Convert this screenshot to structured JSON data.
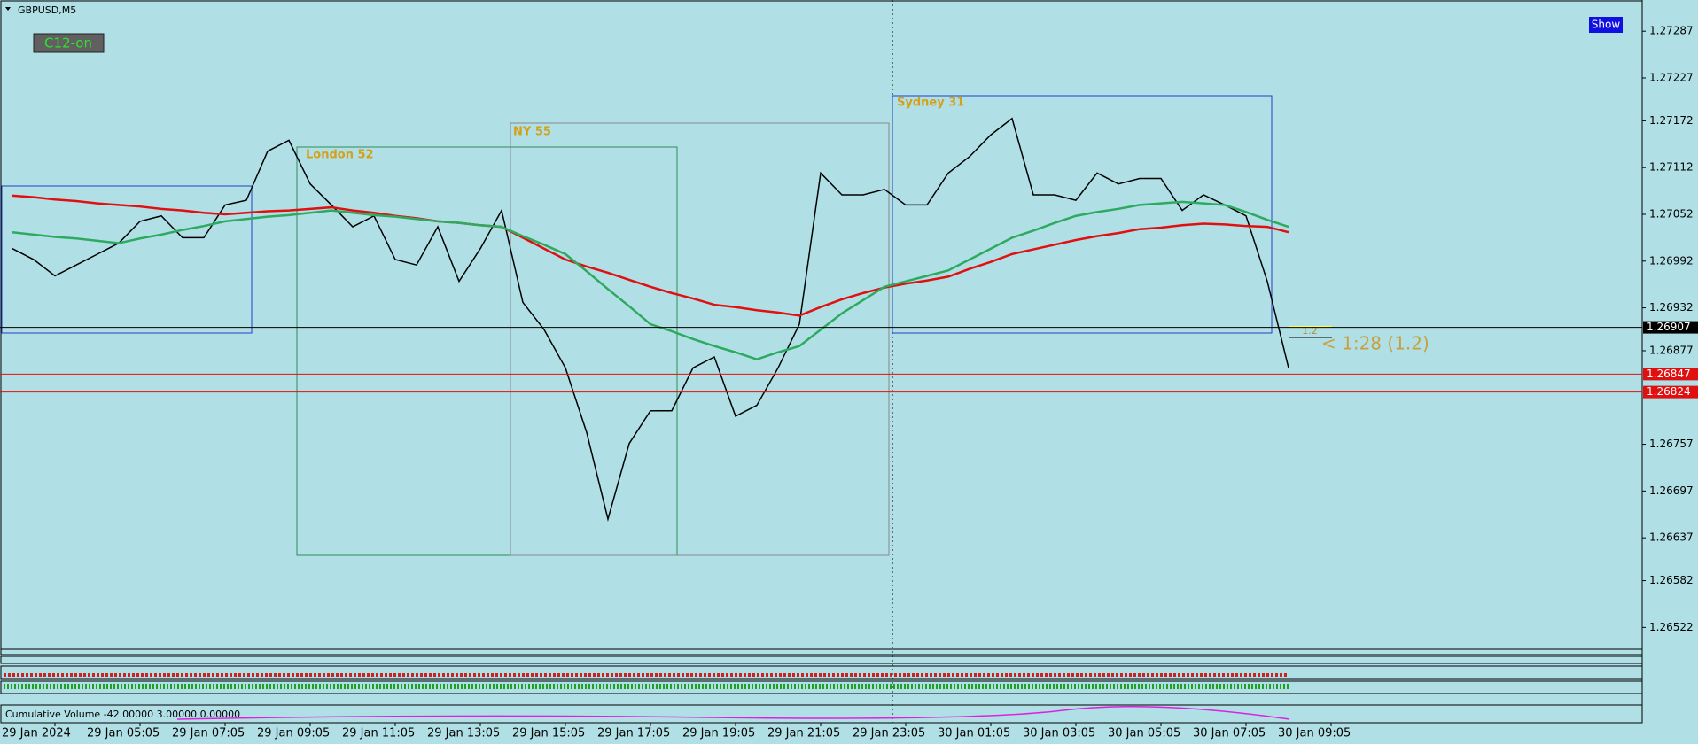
{
  "header": {
    "symbol": "GBPUSD,M5",
    "badge": "C12-on",
    "button": "Show",
    "annotation": "< 1:28 (1.2)",
    "ratio": "1.2",
    "sessions": [
      "London 52",
      "NY 55",
      "Sydney 31"
    ],
    "indicator": "Cumulative Volume -42.00000 3.00000 0.00000"
  },
  "chart_data": {
    "type": "line",
    "categories": [
      null,
      null,
      "29 Jan 2024",
      null,
      null,
      null,
      "29 Jan 05:05",
      null,
      null,
      null,
      "29 Jan 07:05",
      null,
      null,
      null,
      "29 Jan 09:05",
      null,
      null,
      null,
      "29 Jan 11:05",
      null,
      null,
      null,
      "29 Jan 13:05",
      null,
      null,
      null,
      "29 Jan 15:05",
      null,
      null,
      null,
      "29 Jan 17:05",
      null,
      null,
      null,
      "29 Jan 19:05",
      null,
      null,
      null,
      "29 Jan 21:05",
      null,
      null,
      null,
      "29 Jan 23:05",
      null,
      null,
      null,
      "30 Jan 01:05",
      null,
      null,
      null,
      "30 Jan 03:05",
      null,
      null,
      null,
      "30 Jan 05:05",
      null,
      null,
      null,
      "30 Jan 07:05",
      null,
      null,
      null,
      "30 Jan 09:05"
    ],
    "series": [
      {
        "color": "#000000",
        "values": [
          1.27008,
          1.26994,
          1.26973,
          1.26987,
          1.27001,
          1.27015,
          1.27043,
          1.2705,
          1.27022,
          1.27022,
          1.27064,
          1.2707,
          1.27133,
          1.27147,
          1.27091,
          1.27064,
          1.27036,
          1.2705,
          1.26994,
          1.26987,
          1.27036,
          1.26966,
          1.27008,
          1.27057,
          1.26939,
          1.26904,
          1.26855,
          1.26772,
          1.26661,
          1.26758,
          1.268,
          1.268,
          1.26855,
          1.26869,
          1.26793,
          1.26807,
          1.26855,
          1.26911,
          1.27105,
          1.27077,
          1.27077,
          1.27084,
          1.27064,
          1.27064,
          1.27105,
          1.27126,
          1.27154,
          1.27175,
          1.27077,
          1.27077,
          1.2707,
          1.27105,
          1.27091,
          1.27098,
          1.27098,
          1.27057,
          1.27077,
          1.27064,
          1.2705,
          1.26966,
          1.26855,
          null,
          null
        ]
      },
      {
        "color": "#e01010",
        "values": [
          1.27076,
          1.27074,
          1.27071,
          1.27069,
          1.27066,
          1.27064,
          1.27062,
          1.27059,
          1.27057,
          1.27054,
          1.27052,
          1.27054,
          1.27056,
          1.27057,
          1.27059,
          1.27061,
          1.27057,
          1.27054,
          1.2705,
          1.27047,
          1.27043,
          1.27041,
          1.27038,
          1.27036,
          1.27022,
          1.27008,
          1.26994,
          1.26985,
          1.26977,
          1.26968,
          1.26959,
          1.26951,
          1.26944,
          1.26936,
          1.26933,
          1.26929,
          1.26926,
          1.26922,
          1.26933,
          1.26943,
          1.26951,
          1.26958,
          1.26963,
          1.26967,
          1.26972,
          1.26982,
          1.26991,
          1.27001,
          1.27007,
          1.27013,
          1.27019,
          1.27024,
          1.27028,
          1.27033,
          1.27035,
          1.27038,
          1.2704,
          1.27039,
          1.27037,
          1.27036,
          1.27029,
          null,
          null
        ]
      },
      {
        "color": "#2eaa60",
        "values": [
          1.27029,
          1.27026,
          1.27023,
          1.27021,
          1.27018,
          1.27015,
          1.27021,
          1.27026,
          1.27032,
          1.27037,
          1.27043,
          1.27046,
          1.27049,
          1.27051,
          1.27054,
          1.27057,
          1.27054,
          1.27051,
          1.27049,
          1.27046,
          1.27043,
          1.27041,
          1.27038,
          1.27036,
          1.27024,
          1.27013,
          1.27001,
          1.26979,
          1.26956,
          1.26934,
          1.26911,
          1.26902,
          1.26892,
          1.26883,
          1.26875,
          1.26866,
          1.26875,
          1.26883,
          1.26904,
          1.26925,
          1.26942,
          1.26959,
          1.26966,
          1.26973,
          1.2698,
          1.26994,
          1.27008,
          1.27022,
          1.27031,
          1.27041,
          1.2705,
          1.27055,
          1.27059,
          1.27064,
          1.27066,
          1.27068,
          1.27066,
          1.27064,
          1.27055,
          1.27045,
          1.27036,
          null,
          null
        ]
      }
    ],
    "ylim": [
      1.26494,
      1.27327
    ],
    "yticks": [
      1.27287,
      1.27227,
      1.27172,
      1.27112,
      1.27052,
      1.26992,
      1.26932,
      1.26877,
      1.26757,
      1.26697,
      1.26637,
      1.26582,
      1.26522
    ],
    "hlines": [
      {
        "value": 1.26907,
        "color": "#000000"
      },
      {
        "value": 1.26847,
        "color": "#e01010"
      },
      {
        "value": 1.26824,
        "color": "#e01010"
      }
    ],
    "grid": false
  }
}
